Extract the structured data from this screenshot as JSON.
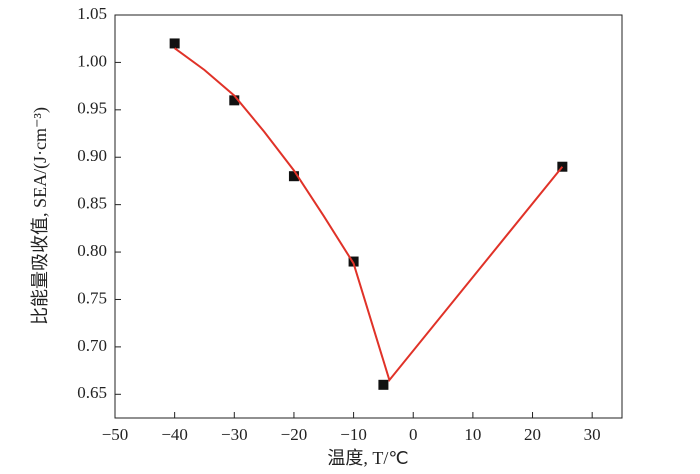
{
  "chart_data": {
    "type": "scatter",
    "xlabel": "温度, T/℃",
    "ylabel": "比能量吸收值, SEA/(J·cm⁻³)",
    "xlim": [
      -50,
      35
    ],
    "ylim": [
      0.625,
      1.05
    ],
    "xticks": [
      {
        "value": -50,
        "label": "−50"
      },
      {
        "value": -40,
        "label": "−40"
      },
      {
        "value": -30,
        "label": "−30"
      },
      {
        "value": -20,
        "label": "−20"
      },
      {
        "value": -10,
        "label": "−10"
      },
      0,
      10,
      20,
      30
    ],
    "yticks": [
      0.65,
      {
        "value": 0.7,
        "label": "0.70"
      },
      0.75,
      {
        "value": 0.8,
        "label": "0.80"
      },
      0.85,
      {
        "value": 0.9,
        "label": "0.90"
      },
      0.95,
      {
        "value": 1,
        "label": "1.00"
      },
      1.05
    ],
    "series": [
      {
        "type": "scatter",
        "color": "#111111",
        "x": [
          -40,
          -30,
          -20,
          -10,
          -5,
          25
        ],
        "values": [
          1.02,
          0.96,
          0.88,
          0.79,
          0.66,
          0.89
        ]
      },
      {
        "type": "line",
        "color": "#e03228",
        "x": [
          -40,
          -35,
          -30,
          -25,
          -20,
          -15,
          -10,
          -4,
          25
        ],
        "values": [
          1.015,
          0.992,
          0.965,
          0.927,
          0.886,
          0.838,
          0.788,
          0.665,
          0.89
        ]
      }
    ]
  }
}
